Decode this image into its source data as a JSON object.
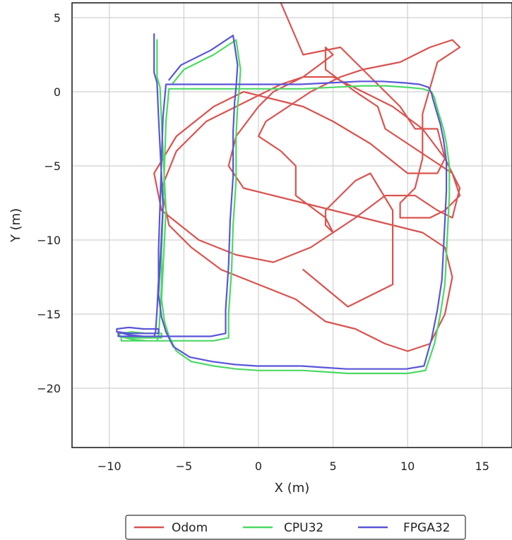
{
  "chart_data": {
    "type": "line",
    "xlabel": "X (m)",
    "ylabel": "Y (m)",
    "xlim": [
      -12.5,
      17
    ],
    "ylim": [
      -24,
      6
    ],
    "xticks": [
      -10,
      -5,
      0,
      5,
      10,
      15
    ],
    "yticks": [
      5,
      0,
      -5,
      -10,
      -15,
      -20
    ],
    "xtick_labels": [
      "−10",
      "−5",
      "0",
      "5",
      "10",
      "15"
    ],
    "ytick_labels": [
      "5",
      "0",
      "−5",
      "−10",
      "−15",
      "−20"
    ],
    "grid": true,
    "legend_position": "bottom",
    "series": [
      {
        "name": "Odom",
        "color": "#d9534f",
        "x": [
          1.5,
          3,
          5.5,
          8,
          9.5,
          10.5,
          12,
          12.5,
          12,
          10,
          7.5,
          5,
          3,
          1,
          -1,
          -3,
          -5.5,
          -7,
          -6.5,
          -4,
          -1.5,
          1,
          3.5,
          6.5,
          8.5,
          10.5,
          12,
          13,
          13.5,
          12.5,
          11,
          9,
          7,
          5,
          3,
          1.5,
          0.5,
          -1.5,
          -3.5,
          -5.5,
          -6.5,
          -6,
          -4.5,
          -2.5,
          0,
          2.5,
          4.5,
          6.5,
          8.5,
          10,
          11.5,
          12.5,
          13,
          12.5,
          11,
          9,
          7,
          5,
          3,
          1,
          -1,
          -2,
          -1.5,
          0,
          1,
          3,
          5,
          4.5,
          4.5,
          6.5,
          8,
          8.5,
          10,
          11.5,
          13,
          13.5,
          12.5,
          11.5,
          10.5,
          9.5,
          9.5,
          10.5,
          11,
          11,
          12,
          13.5,
          13,
          11.5,
          9.5,
          7,
          5.5,
          3.5,
          2,
          0.5,
          0,
          1.5,
          2.5,
          2.5,
          4.5,
          5,
          4.5,
          4.5,
          5.5,
          6.5,
          7.5,
          9,
          9,
          6,
          3
        ],
        "y": [
          6,
          2.5,
          3,
          0.5,
          -1,
          -2.5,
          -2.5,
          -4.5,
          -5.5,
          -5.5,
          -3.5,
          -2,
          -1,
          -0.5,
          0,
          -1,
          -3,
          -5.5,
          -8,
          -10,
          -11,
          -11.5,
          -10.5,
          -8.5,
          -7,
          -7,
          -8,
          -8.5,
          -6.5,
          -4.5,
          -2.5,
          -1,
          0,
          1,
          1,
          0.5,
          0,
          -1,
          -2,
          -4,
          -6.5,
          -9,
          -10.5,
          -12,
          -13,
          -14,
          -15.5,
          -16,
          -17,
          -17.5,
          -17,
          -15,
          -12.5,
          -10.5,
          -9.5,
          -9,
          -8.5,
          -8,
          -7.5,
          -7,
          -6.5,
          -5,
          -3,
          -1,
          0,
          1,
          2.5,
          3,
          1.5,
          0,
          -1,
          -2.5,
          -3.5,
          -4.5,
          -5.5,
          -7,
          -8,
          -8.5,
          -8.5,
          -8.5,
          -7.5,
          -6.5,
          -4.5,
          -1.5,
          2,
          3,
          3.5,
          3,
          2,
          1.5,
          1,
          0,
          -1,
          -2,
          -3,
          -4,
          -5,
          -7,
          -8.5,
          -9.5,
          -9,
          -8,
          -7,
          -6,
          -5.5,
          -8,
          -13,
          -14.5,
          -12
        ]
      },
      {
        "name": "CPU32",
        "color": "#4cd964",
        "x": [
          -6.8,
          -6.8,
          -6.6,
          -6.5,
          -6.4,
          -6.3,
          -6.2,
          -6.3,
          -6.4,
          -6.5,
          -6.3,
          -6.0,
          -5.5,
          -4.5,
          -3,
          -1.5,
          0,
          1.5,
          3,
          4.5,
          6,
          8,
          10,
          11.2,
          11.8,
          12.2,
          12.5,
          12.6,
          12.7,
          12.8,
          12.8,
          12.6,
          12.4,
          12.1,
          11.9,
          11.8,
          11.6,
          11,
          10,
          8.5,
          7,
          5,
          3,
          1,
          -1,
          -3,
          -5,
          -6,
          -6.2,
          -6.3,
          -6.4,
          -6.5,
          -6.5,
          -6.6,
          -6.7,
          -6.8,
          -6.8,
          -7,
          -7.5,
          -8.5,
          -9.2,
          -9.2,
          -8.5,
          -7.5,
          -6.5,
          -6.5,
          -7.5,
          -8.5,
          -9.3,
          -9.3,
          -8.5,
          -7.5,
          -6.5,
          -5,
          -3,
          -2,
          -2,
          -1.8,
          -1.7,
          -1.5,
          -1.5,
          -1.4,
          -1.3,
          -1.2,
          -1.5,
          -3,
          -5,
          -5.8
        ],
        "y": [
          3.5,
          1.0,
          0.3,
          -2,
          -4,
          -6,
          -8,
          -10,
          -12,
          -14,
          -15.5,
          -16.5,
          -17.5,
          -18.2,
          -18.5,
          -18.7,
          -18.8,
          -18.8,
          -18.8,
          -18.9,
          -19.0,
          -19.0,
          -19.0,
          -18.8,
          -17,
          -15,
          -13,
          -11,
          -9,
          -7,
          -5,
          -3.5,
          -2.5,
          -1.5,
          -0.8,
          -0.4,
          0,
          0.2,
          0.3,
          0.4,
          0.4,
          0.3,
          0.2,
          0.2,
          0.2,
          0.2,
          0.2,
          0.2,
          -2,
          -5,
          -8,
          -11,
          -13,
          -15,
          -16.5,
          -16.8,
          -16.8,
          -16.8,
          -16.8,
          -16.8,
          -16.8,
          -16.5,
          -16.6,
          -16.6,
          -16.6,
          -16.3,
          -16.3,
          -16.2,
          -16.3,
          -16.5,
          -16.7,
          -16.8,
          -16.8,
          -16.8,
          -16.8,
          -16.6,
          -15,
          -12,
          -9,
          -6,
          -3,
          -1,
          0,
          1.5,
          3.5,
          2.5,
          1.5,
          0.5
        ]
      },
      {
        "name": "FPGA32",
        "color": "#5a55d6",
        "x": [
          -7,
          -7,
          -6.8,
          -6.7,
          -6.6,
          -6.5,
          -6.4,
          -6.5,
          -6.6,
          -6.7,
          -6.5,
          -6.2,
          -5.7,
          -4.6,
          -3.1,
          -1.6,
          -0.1,
          1.4,
          2.9,
          4.4,
          5.9,
          7.9,
          9.9,
          11.1,
          11.6,
          12,
          12.3,
          12.4,
          12.5,
          12.6,
          12.6,
          12.4,
          12.2,
          11.9,
          11.7,
          11.6,
          11.4,
          10.8,
          9.8,
          8.3,
          6.8,
          4.8,
          2.8,
          0.8,
          -1.2,
          -3.2,
          -5.2,
          -6.2,
          -6.4,
          -6.5,
          -6.6,
          -6.7,
          -6.7,
          -6.8,
          -6.9,
          -7,
          -7,
          -7.2,
          -7.7,
          -8.7,
          -9.4,
          -9.4,
          -8.7,
          -7.7,
          -6.7,
          -6.7,
          -7.7,
          -8.7,
          -9.5,
          -9.5,
          -8.7,
          -7.7,
          -6.7,
          -5.2,
          -3.2,
          -2.2,
          -2.2,
          -2,
          -1.9,
          -1.7,
          -1.7,
          -1.6,
          -1.5,
          -1.4,
          -1.7,
          -3.2,
          -5.2,
          -6
        ],
        "y": [
          3.9,
          1.3,
          0.6,
          -1.7,
          -3.7,
          -5.7,
          -7.7,
          -9.7,
          -11.7,
          -13.7,
          -15.2,
          -16.2,
          -17.2,
          -17.9,
          -18.2,
          -18.4,
          -18.5,
          -18.5,
          -18.5,
          -18.6,
          -18.7,
          -18.7,
          -18.7,
          -18.5,
          -16.7,
          -14.7,
          -12.7,
          -10.7,
          -8.7,
          -6.7,
          -4.7,
          -3.2,
          -2.2,
          -1.2,
          -0.5,
          -0.1,
          0.3,
          0.5,
          0.6,
          0.7,
          0.7,
          0.6,
          0.5,
          0.5,
          0.5,
          0.5,
          0.5,
          0.5,
          -1.7,
          -4.7,
          -7.7,
          -10.7,
          -12.7,
          -14.7,
          -16.2,
          -16.5,
          -16.5,
          -16.5,
          -16.5,
          -16.5,
          -16.5,
          -16.2,
          -16.3,
          -16.3,
          -16.3,
          -16,
          -16,
          -15.9,
          -16,
          -16.2,
          -16.4,
          -16.5,
          -16.5,
          -16.5,
          -16.5,
          -16.3,
          -14.7,
          -11.7,
          -8.7,
          -5.7,
          -2.7,
          -0.7,
          0.3,
          1.8,
          3.8,
          2.8,
          1.8,
          0.8
        ]
      }
    ]
  }
}
